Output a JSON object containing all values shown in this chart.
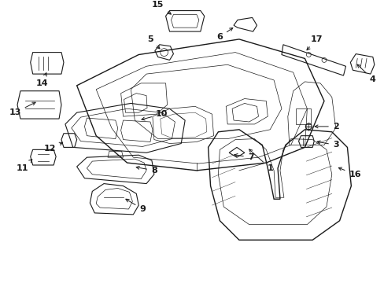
{
  "bg_color": "#ffffff",
  "line_color": "#1a1a1a",
  "figsize": [
    4.89,
    3.6
  ],
  "dpi": 100,
  "label_fontsize": 8.0
}
